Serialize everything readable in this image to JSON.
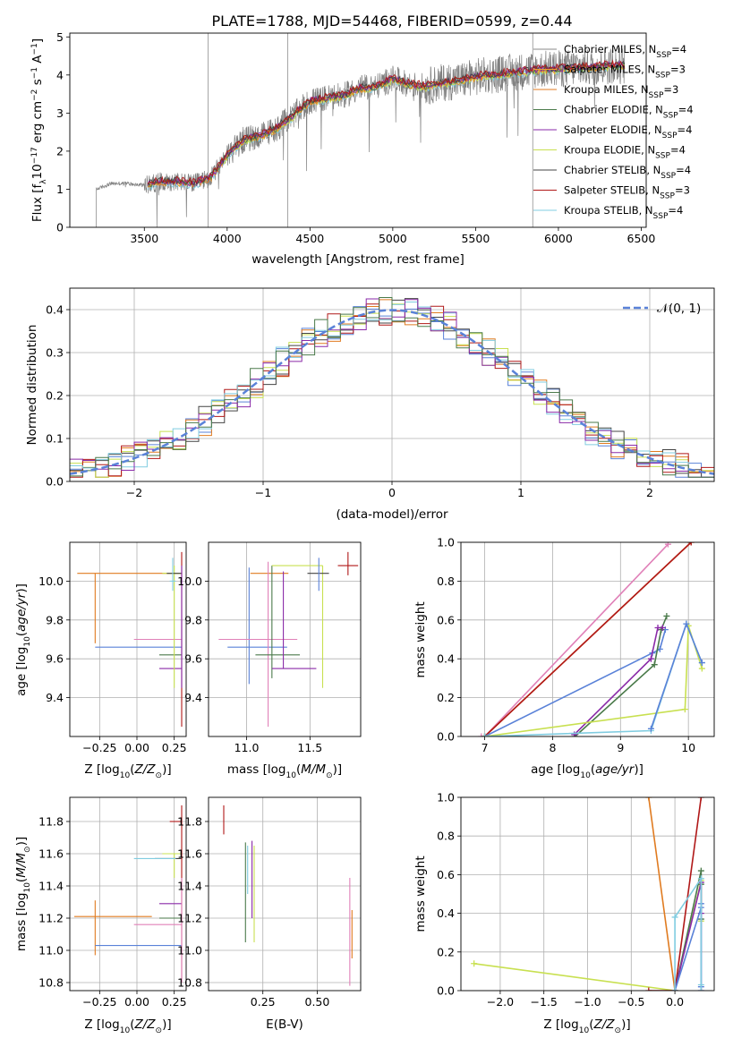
{
  "title": "PLATE=1788, MJD=54468, FIBERID=0599, z=0.44",
  "colors": {
    "chabrier_miles": "#888888",
    "salpeter_miles": "#f0a030",
    "kroupa_miles": "#e07b20",
    "chabrier_elodie": "#4a7a4a",
    "salpeter_elodie": "#8a2aa8",
    "kroupa_elodie": "#c8e050",
    "chabrier_stelib": "#444444",
    "salpeter_stelib": "#b01818",
    "kroupa_stelib": "#80cce0",
    "blue": "#5a82d8",
    "pink": "#e080b8",
    "grid": "#b0b0b0"
  },
  "chart_data": [
    {
      "type": "line",
      "id": "spectrum",
      "xlabel": "wavelength [Angstrom, rest frame]",
      "ylabel": "Flux [f_λ 10^-17 erg cm^-2 s^-1 A^-1]",
      "xlim": [
        3050,
        6530
      ],
      "ylim": [
        0,
        5.1
      ],
      "xticks": [
        3500,
        4000,
        4500,
        5000,
        5500,
        6000,
        6500
      ],
      "yticks": [
        0,
        1,
        2,
        3,
        4,
        5
      ],
      "legend_position": "right",
      "legend": [
        {
          "pre": "Chabrier MILES, N",
          "sub": "SSP",
          "post": "=4",
          "color": "#888888"
        },
        {
          "pre": "Salpeter MILES, N",
          "sub": "SSP",
          "post": "=3",
          "color": "#f0a030"
        },
        {
          "pre": "Kroupa MILES, N",
          "sub": "SSP",
          "post": "=3",
          "color": "#e07b20"
        },
        {
          "pre": "Chabrier ELODIE, N",
          "sub": "SSP",
          "post": "=4",
          "color": "#4a7a4a"
        },
        {
          "pre": "Salpeter ELODIE, N",
          "sub": "SSP",
          "post": "=4",
          "color": "#8a2aa8"
        },
        {
          "pre": "Kroupa ELODIE, N",
          "sub": "SSP",
          "post": "=4",
          "color": "#c8e050"
        },
        {
          "pre": "Chabrier STELIB, N",
          "sub": "SSP",
          "post": "=4",
          "color": "#444444"
        },
        {
          "pre": "Salpeter STELIB, N",
          "sub": "SSP",
          "post": "=3",
          "color": "#b01818"
        },
        {
          "pre": "Kroupa STELIB, N",
          "sub": "SSP",
          "post": "=4",
          "color": "#80cce0"
        }
      ],
      "continuum": {
        "x": [
          3210,
          3300,
          3400,
          3500,
          3600,
          3700,
          3800,
          3900,
          4000,
          4100,
          4200,
          4300,
          4400,
          4500,
          4600,
          4700,
          4800,
          4900,
          5000,
          5100,
          5200,
          5300,
          5400,
          5500,
          5600,
          5700,
          5800,
          5900,
          6000,
          6100,
          6200,
          6300,
          6400
        ],
        "y": [
          1.0,
          1.15,
          1.15,
          1.1,
          1.2,
          1.2,
          1.15,
          1.3,
          1.9,
          2.3,
          2.4,
          2.6,
          2.95,
          3.3,
          3.4,
          3.45,
          3.65,
          3.7,
          3.9,
          3.75,
          3.7,
          3.8,
          3.85,
          3.95,
          4.0,
          4.05,
          4.1,
          4.15,
          4.15,
          4.2,
          4.2,
          4.25,
          4.25
        ]
      }
    },
    {
      "type": "bar",
      "id": "residuals",
      "xlabel": "(data-model)/error",
      "ylabel": "Normed distribution",
      "xlim": [
        -2.5,
        2.5
      ],
      "ylim": [
        0,
        0.45
      ],
      "xticks": [
        -2,
        -1,
        0,
        1,
        2
      ],
      "yticks": [
        0.0,
        0.1,
        0.2,
        0.3,
        0.4
      ],
      "legend": "𝒩(0, 1)",
      "legend_position": "top-right",
      "bin_width": 0.1,
      "model_curve": "gaussian mean 0 sigma 1"
    },
    {
      "type": "scatter",
      "id": "age_vs_Z",
      "xlabel": "Z [log10(Z/Z⊙)]",
      "ylabel": "age  [log10(age/yr)]",
      "xlim": [
        -0.45,
        0.33
      ],
      "ylim": [
        9.2,
        10.2
      ],
      "xticks": [
        -0.25,
        0.0,
        0.25
      ],
      "yticks": [
        9.4,
        9.6,
        9.8,
        10.0
      ],
      "points": [
        {
          "x": -0.05,
          "y": 10.04,
          "xlo": -0.4,
          "xhi": 0.3,
          "ylo": 10.04,
          "yhi": 10.04,
          "color": "#e07b20"
        },
        {
          "x": -0.28,
          "y": 10.04,
          "xlo": -0.28,
          "xhi": -0.28,
          "ylo": 9.68,
          "yhi": 10.04,
          "color": "#e07b20"
        },
        {
          "x": 0.1,
          "y": 9.66,
          "xlo": -0.28,
          "xhi": 0.3,
          "ylo": 9.66,
          "yhi": 9.66,
          "color": "#5a82d8"
        },
        {
          "x": 0.15,
          "y": 9.7,
          "xlo": -0.02,
          "xhi": 0.3,
          "ylo": 9.7,
          "yhi": 9.7,
          "color": "#e080b8"
        },
        {
          "x": 0.22,
          "y": 9.62,
          "xlo": 0.15,
          "xhi": 0.3,
          "ylo": 9.62,
          "yhi": 9.62,
          "color": "#4a7a4a"
        },
        {
          "x": 0.22,
          "y": 9.55,
          "xlo": 0.15,
          "xhi": 0.3,
          "ylo": 9.55,
          "yhi": 9.55,
          "color": "#8a2aa8"
        },
        {
          "x": 0.25,
          "y": 10.04,
          "xlo": 0.17,
          "xhi": 0.3,
          "ylo": 9.45,
          "yhi": 10.08,
          "color": "#c8e050"
        },
        {
          "x": 0.27,
          "y": 10.04,
          "xlo": 0.2,
          "xhi": 0.3,
          "ylo": 10.04,
          "yhi": 10.04,
          "color": "#444444"
        },
        {
          "x": 0.24,
          "y": 10.0,
          "xlo": 0.22,
          "xhi": 0.26,
          "ylo": 9.95,
          "yhi": 10.12,
          "color": "#80cce0"
        },
        {
          "x": 0.3,
          "y": 9.7,
          "xlo": 0.3,
          "xhi": 0.3,
          "ylo": 9.25,
          "yhi": 10.15,
          "color": "#b01818"
        },
        {
          "x": 0.3,
          "y": 9.7,
          "xlo": 0.3,
          "xhi": 0.3,
          "ylo": 9.45,
          "yhi": 10.08,
          "color": "#8a2aa8"
        }
      ]
    },
    {
      "type": "scatter",
      "id": "age_vs_mass",
      "xlabel": "mass [log10(M/M⊙)]",
      "ylabel": "",
      "xlim": [
        10.7,
        11.9
      ],
      "ylim": [
        9.2,
        10.2
      ],
      "xticks": [
        11.0,
        11.5
      ],
      "yticks": [
        9.4,
        9.6,
        9.8,
        10.0
      ],
      "points": [
        {
          "x": 11.2,
          "y": 10.04,
          "xlo": 11.03,
          "xhi": 11.33,
          "ylo": 10.04,
          "yhi": 10.04,
          "color": "#e07b20"
        },
        {
          "x": 11.02,
          "y": 9.66,
          "xlo": 10.85,
          "xhi": 11.32,
          "ylo": 9.47,
          "yhi": 10.07,
          "color": "#5a82d8"
        },
        {
          "x": 11.1,
          "y": 9.7,
          "xlo": 10.78,
          "xhi": 11.4,
          "ylo": 9.7,
          "yhi": 9.7,
          "color": "#e080b8"
        },
        {
          "x": 11.17,
          "y": 9.7,
          "xlo": 11.17,
          "xhi": 11.17,
          "ylo": 9.25,
          "yhi": 10.1,
          "color": "#e080b8"
        },
        {
          "x": 11.2,
          "y": 9.62,
          "xlo": 11.07,
          "xhi": 11.42,
          "ylo": 9.5,
          "yhi": 10.08,
          "color": "#4a7a4a"
        },
        {
          "x": 11.29,
          "y": 9.55,
          "xlo": 11.2,
          "xhi": 11.55,
          "ylo": 9.55,
          "yhi": 10.05,
          "color": "#8a2aa8"
        },
        {
          "x": 11.6,
          "y": 10.08,
          "xlo": 11.2,
          "xhi": 11.6,
          "ylo": 9.45,
          "yhi": 10.08,
          "color": "#c8e050"
        },
        {
          "x": 11.57,
          "y": 10.04,
          "xlo": 11.48,
          "xhi": 11.65,
          "ylo": 10.04,
          "yhi": 10.04,
          "color": "#444444"
        },
        {
          "x": 11.57,
          "y": 10.04,
          "xlo": 11.57,
          "xhi": 11.57,
          "ylo": 9.95,
          "yhi": 10.12,
          "color": "#5a82d8"
        },
        {
          "x": 11.8,
          "y": 10.08,
          "xlo": 11.72,
          "xhi": 11.88,
          "ylo": 10.03,
          "yhi": 10.15,
          "color": "#b01818"
        }
      ]
    },
    {
      "type": "line",
      "id": "massweight_vs_age",
      "xlabel": "age  [log10(age/yr)]",
      "ylabel": "mass weight",
      "xlim": [
        6.65,
        10.38
      ],
      "ylim": [
        0,
        1.0
      ],
      "xticks": [
        7,
        8,
        9,
        10
      ],
      "yticks": [
        0.0,
        0.2,
        0.4,
        0.6,
        0.8,
        1.0
      ],
      "series": [
        {
          "color": "#e080b8",
          "x": [
            6.95,
            7.0,
            9.7
          ],
          "y": [
            0.0,
            0.0,
            0.99
          ]
        },
        {
          "color": "#e07b20",
          "x": [
            7.0,
            10.04
          ],
          "y": [
            0.0,
            1.0
          ]
        },
        {
          "color": "#b01818",
          "x": [
            7.0,
            10.04
          ],
          "y": [
            0.0,
            1.0
          ]
        },
        {
          "color": "#5a82d8",
          "x": [
            7.0,
            9.47,
            9.58,
            9.66
          ],
          "y": [
            0.0,
            0.43,
            0.45,
            0.55
          ]
        },
        {
          "color": "#4a7a4a",
          "x": [
            8.33,
            9.5,
            9.6,
            9.68
          ],
          "y": [
            0.0,
            0.37,
            0.55,
            0.62
          ]
        },
        {
          "color": "#8a2aa8",
          "x": [
            8.32,
            9.45,
            9.55,
            9.62
          ],
          "y": [
            0.01,
            0.4,
            0.56,
            0.56
          ]
        },
        {
          "color": "#c8e050",
          "x": [
            7.0,
            9.95,
            10.0,
            10.2
          ],
          "y": [
            0.0,
            0.14,
            0.57,
            0.35
          ]
        },
        {
          "color": "#80cce0",
          "x": [
            7.0,
            9.45,
            9.97,
            10.2
          ],
          "y": [
            0.0,
            0.03,
            0.58,
            0.38
          ]
        },
        {
          "color": "#5a82d8",
          "x": [
            9.45,
            9.97,
            10.2
          ],
          "y": [
            0.04,
            0.58,
            0.38
          ]
        }
      ]
    },
    {
      "type": "scatter",
      "id": "mass_vs_Z",
      "xlabel": "Z [log10(Z/Z⊙)]",
      "ylabel": "mass [log10(M/M⊙)]",
      "xlim": [
        -0.45,
        0.33
      ],
      "ylim": [
        10.75,
        11.95
      ],
      "xticks": [
        -0.25,
        0.0,
        0.25
      ],
      "yticks": [
        10.8,
        11.0,
        11.2,
        11.4,
        11.6,
        11.8
      ],
      "points": [
        {
          "x": -0.28,
          "y": 11.21,
          "xlo": -0.42,
          "xhi": 0.1,
          "ylo": 10.97,
          "yhi": 11.31,
          "color": "#e07b20"
        },
        {
          "x": 0.0,
          "y": 11.03,
          "xlo": -0.28,
          "xhi": 0.3,
          "ylo": 11.03,
          "yhi": 11.03,
          "color": "#5a82d8"
        },
        {
          "x": 0.15,
          "y": 11.16,
          "xlo": -0.02,
          "xhi": 0.3,
          "ylo": 11.16,
          "yhi": 11.16,
          "color": "#e080b8"
        },
        {
          "x": 0.22,
          "y": 11.2,
          "xlo": 0.15,
          "xhi": 0.3,
          "ylo": 11.2,
          "yhi": 11.2,
          "color": "#4a7a4a"
        },
        {
          "x": 0.22,
          "y": 11.29,
          "xlo": 0.15,
          "xhi": 0.3,
          "ylo": 11.29,
          "yhi": 11.29,
          "color": "#8a2aa8"
        },
        {
          "x": 0.25,
          "y": 11.6,
          "xlo": 0.17,
          "xhi": 0.3,
          "ylo": 11.45,
          "yhi": 11.6,
          "color": "#c8e050"
        },
        {
          "x": 0.2,
          "y": 11.57,
          "xlo": 0.12,
          "xhi": 0.3,
          "ylo": 11.57,
          "yhi": 11.57,
          "color": "#444444"
        },
        {
          "x": 0.1,
          "y": 11.57,
          "xlo": -0.02,
          "xhi": 0.26,
          "ylo": 11.57,
          "yhi": 11.57,
          "color": "#80cce0"
        },
        {
          "x": 0.27,
          "y": 11.8,
          "xlo": 0.22,
          "xhi": 0.3,
          "ylo": 11.8,
          "yhi": 11.8,
          "color": "#b01818"
        },
        {
          "x": 0.3,
          "y": 11.3,
          "xlo": 0.3,
          "xhi": 0.3,
          "ylo": 10.8,
          "yhi": 11.9,
          "color": "#b01818"
        },
        {
          "x": 0.3,
          "y": 11.3,
          "xlo": 0.3,
          "xhi": 0.3,
          "ylo": 10.8,
          "yhi": 11.45,
          "color": "#e080b8"
        }
      ]
    },
    {
      "type": "scatter",
      "id": "mass_vs_ebv",
      "xlabel": "E(B-V)",
      "ylabel": "",
      "xlim": [
        0.0,
        0.7
      ],
      "ylim": [
        10.75,
        11.95
      ],
      "xticks": [
        0.25,
        0.5
      ],
      "yticks": [
        10.8,
        11.0,
        11.2,
        11.4,
        11.6,
        11.8
      ],
      "points": [
        {
          "x": 0.07,
          "y": 11.8,
          "xlo": 0.07,
          "xhi": 0.07,
          "ylo": 11.72,
          "yhi": 11.9,
          "color": "#b01818"
        },
        {
          "x": 0.17,
          "y": 11.5,
          "xlo": 0.17,
          "xhi": 0.17,
          "ylo": 11.05,
          "yhi": 11.67,
          "color": "#4a7a4a"
        },
        {
          "x": 0.18,
          "y": 11.55,
          "xlo": 0.18,
          "xhi": 0.18,
          "ylo": 11.35,
          "yhi": 11.65,
          "color": "#80cce0"
        },
        {
          "x": 0.2,
          "y": 11.5,
          "xlo": 0.2,
          "xhi": 0.2,
          "ylo": 11.2,
          "yhi": 11.68,
          "color": "#8a2aa8"
        },
        {
          "x": 0.21,
          "y": 11.4,
          "xlo": 0.21,
          "xhi": 0.21,
          "ylo": 11.05,
          "yhi": 11.65,
          "color": "#c8e050"
        },
        {
          "x": 0.65,
          "y": 11.1,
          "xlo": 0.65,
          "xhi": 0.65,
          "ylo": 10.78,
          "yhi": 11.45,
          "color": "#e080b8"
        },
        {
          "x": 0.66,
          "y": 11.1,
          "xlo": 0.66,
          "xhi": 0.66,
          "ylo": 10.95,
          "yhi": 11.25,
          "color": "#e07b20"
        }
      ]
    },
    {
      "type": "line",
      "id": "massweight_vs_Z",
      "xlabel": "Z [log10(Z/Z⊙)]",
      "ylabel": "mass weight",
      "xlim": [
        -2.45,
        0.45
      ],
      "ylim": [
        0,
        1.0
      ],
      "xticks": [
        -2.0,
        -1.5,
        -1.0,
        -0.5,
        0.0
      ],
      "yticks": [
        0.0,
        0.2,
        0.4,
        0.6,
        0.8,
        1.0
      ],
      "series": [
        {
          "color": "#e07b20",
          "x": [
            -0.3,
            0.0
          ],
          "y": [
            1.0,
            0.0
          ]
        },
        {
          "color": "#c8e050",
          "x": [
            -2.3,
            0.0,
            0.3,
            0.3
          ],
          "y": [
            0.14,
            0.0,
            0.57,
            0.36
          ]
        },
        {
          "color": "#b01818",
          "x": [
            -0.3,
            0.0,
            0.3
          ],
          "y": [
            0.0,
            0.0,
            1.0
          ]
        },
        {
          "color": "#4a7a4a",
          "x": [
            0.0,
            0.3,
            0.3,
            0.3
          ],
          "y": [
            0.0,
            0.62,
            0.55,
            0.37
          ]
        },
        {
          "color": "#8a2aa8",
          "x": [
            0.0,
            0.3,
            0.3,
            0.3
          ],
          "y": [
            0.0,
            0.56,
            0.4,
            0.0
          ]
        },
        {
          "color": "#5a82d8",
          "x": [
            0.0,
            0.3,
            0.3,
            0.3
          ],
          "y": [
            0.0,
            0.43,
            0.45,
            0.02
          ]
        },
        {
          "color": "#80cce0",
          "x": [
            0.0,
            0.0,
            0.3,
            0.3,
            0.3
          ],
          "y": [
            0.0,
            0.38,
            0.58,
            0.03,
            0.0
          ]
        }
      ]
    }
  ]
}
